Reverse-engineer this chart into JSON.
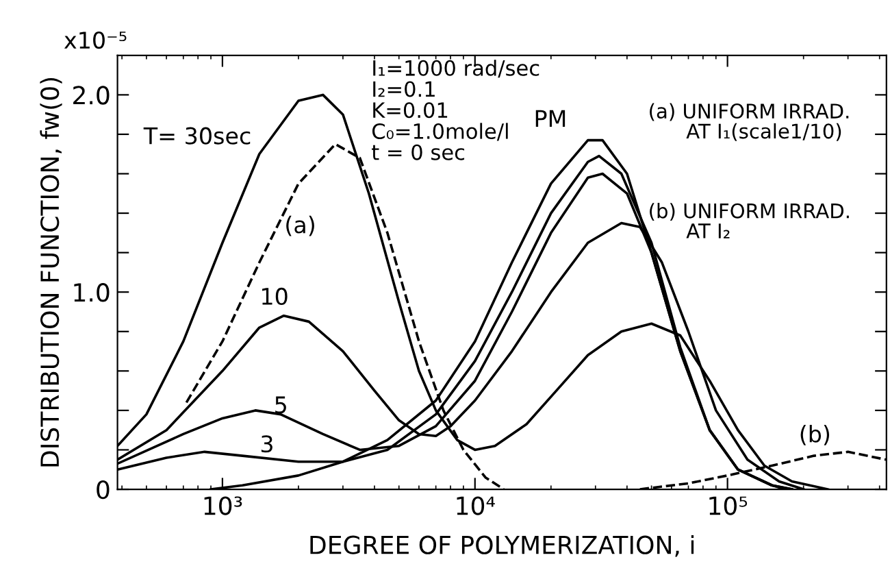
{
  "chart_data": {
    "type": "line",
    "xlabel": "DEGREE OF POLYMERIZATION, i",
    "ylabel": "DISTRIBUTION FUNCTION, fw(0)",
    "log": "x",
    "xlim": [
      384,
      426000
    ],
    "ylim": [
      0,
      2.2
    ],
    "xticks": [
      {
        "value": 1000,
        "label": "10³"
      },
      {
        "value": 10000,
        "label": "10⁴"
      },
      {
        "value": 100000,
        "label": "10⁵"
      }
    ],
    "yticks": [
      0,
      {
        "value": 0.2,
        "label": null
      },
      {
        "value": 0.4,
        "label": null
      },
      {
        "value": 0.6,
        "label": null
      },
      {
        "value": 0.8,
        "label": null
      },
      {
        "value": 1.0,
        "label": "1.0"
      },
      {
        "value": 1.2,
        "label": null
      },
      {
        "value": 1.4,
        "label": null
      },
      {
        "value": 1.6,
        "label": null
      },
      {
        "value": 1.8,
        "label": null
      },
      {
        "value": 2.0,
        "label": "2.0"
      }
    ],
    "grid": false,
    "legend": false,
    "marker": "none",
    "series": [
      {
        "color": "#000000",
        "line_style": "solid",
        "x": [
          384,
          500,
          700,
          1000,
          1400,
          2000,
          2500,
          3000,
          3800,
          5000,
          6000,
          7000,
          8500,
          10000,
          12000,
          16000,
          21000,
          28000,
          38000,
          50000,
          65000,
          85000,
          110000,
          140000,
          180000,
          250000
        ],
        "values": [
          0.22,
          0.38,
          0.75,
          1.25,
          1.7,
          1.97,
          2.0,
          1.9,
          1.5,
          0.95,
          0.6,
          0.4,
          0.25,
          0.2,
          0.22,
          0.33,
          0.5,
          0.68,
          0.8,
          0.84,
          0.78,
          0.55,
          0.3,
          0.12,
          0.04,
          0
        ]
      },
      {
        "color": "#000000",
        "line_style": "solid",
        "x": [
          384,
          600,
          1000,
          1400,
          1750,
          2200,
          3000,
          4000,
          5000,
          6000,
          7000,
          8000,
          10000,
          14000,
          20000,
          28000,
          38000,
          45000,
          55000,
          70000,
          90000,
          120000,
          160000,
          200000
        ],
        "values": [
          0.15,
          0.3,
          0.6,
          0.82,
          0.88,
          0.85,
          0.7,
          0.5,
          0.35,
          0.28,
          0.27,
          0.32,
          0.45,
          0.7,
          1.0,
          1.25,
          1.35,
          1.33,
          1.15,
          0.8,
          0.4,
          0.15,
          0.04,
          0
        ]
      },
      {
        "color": "#000000",
        "line_style": "solid",
        "x": [
          384,
          700,
          1000,
          1350,
          1700,
          2500,
          3500,
          5000,
          7000,
          10000,
          14000,
          20000,
          28000,
          32000,
          40000,
          50000,
          65000,
          85000,
          110000,
          150000,
          180000
        ],
        "values": [
          0.13,
          0.28,
          0.36,
          0.4,
          0.38,
          0.28,
          0.2,
          0.22,
          0.32,
          0.55,
          0.9,
          1.3,
          1.58,
          1.6,
          1.5,
          1.2,
          0.7,
          0.3,
          0.1,
          0.02,
          0
        ]
      },
      {
        "color": "#000000",
        "line_style": "solid",
        "x": [
          384,
          600,
          850,
          1200,
          2000,
          3000,
          4500,
          7000,
          10000,
          14000,
          20000,
          28000,
          31000,
          38000,
          50000,
          65000,
          85000,
          110000,
          150000,
          180000
        ],
        "values": [
          0.1,
          0.16,
          0.19,
          0.17,
          0.14,
          0.14,
          0.2,
          0.38,
          0.65,
          1.0,
          1.4,
          1.66,
          1.69,
          1.6,
          1.25,
          0.72,
          0.3,
          0.1,
          0.02,
          0
        ]
      },
      {
        "color": "#000000",
        "line_style": "solid",
        "x": [
          900,
          1200,
          2000,
          3000,
          4500,
          7000,
          10000,
          14000,
          20000,
          28000,
          32000,
          40000,
          50000,
          65000,
          85000,
          110000,
          150000,
          170000
        ],
        "values": [
          0,
          0.02,
          0.07,
          0.14,
          0.25,
          0.45,
          0.75,
          1.15,
          1.55,
          1.77,
          1.77,
          1.6,
          1.2,
          0.7,
          0.3,
          0.1,
          0.02,
          0
        ]
      },
      {
        "color": "#000000",
        "line_style": "dashed",
        "x": [
          720,
          1000,
          1400,
          2000,
          2800,
          3500,
          4500,
          6000,
          7500,
          9000,
          11000,
          13000
        ],
        "values": [
          0.44,
          0.75,
          1.15,
          1.55,
          1.75,
          1.68,
          1.3,
          0.75,
          0.4,
          0.2,
          0.06,
          0
        ]
      },
      {
        "color": "#000000",
        "line_style": "dashed",
        "x": [
          45000,
          70000,
          100000,
          150000,
          220000,
          300000,
          426000
        ],
        "values": [
          0,
          0.03,
          0.07,
          0.12,
          0.17,
          0.19,
          0.15
        ]
      }
    ],
    "annotations": [
      "T= 30sec",
      "(a)",
      "10",
      "5",
      "3",
      "PM",
      "(b)",
      "x10⁻⁵",
      "I₁=1000 rad/sec\nI₂=0.1\nK=0.01\nC₀=1.0mole/l\nt = 0 sec",
      "(a) UNIFORM IRRAD.\n      AT I₁(scale1/10)",
      "(b) UNIFORM IRRAD.\n      AT I₂"
    ]
  }
}
